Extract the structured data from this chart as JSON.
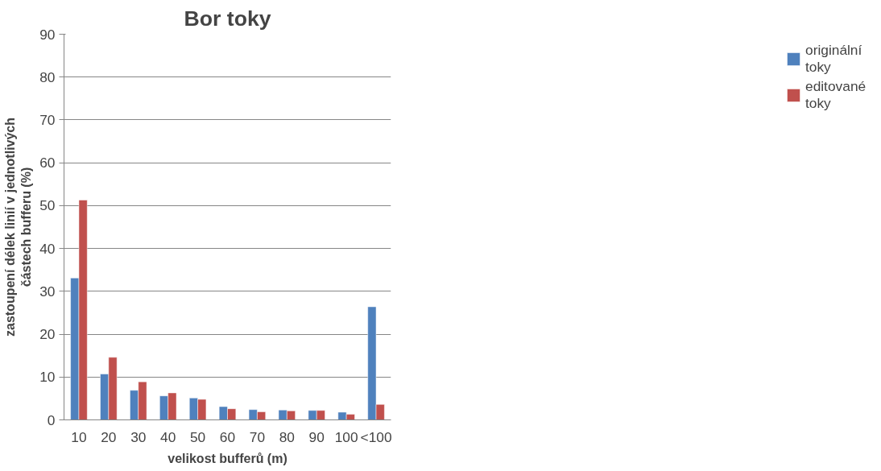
{
  "chart_data": {
    "type": "bar",
    "title": "Bor toky",
    "xlabel": "velikost bufferů (m)",
    "ylabel": "zastoupení délek linií v jednotlivých částech bufferu (%)",
    "categories": [
      "10",
      "20",
      "30",
      "40",
      "50",
      "60",
      "70",
      "80",
      "90",
      "100",
      "<100"
    ],
    "series": [
      {
        "name": "originální toky",
        "color": "#4f81bd",
        "values": [
          33.1,
          10.7,
          6.9,
          5.6,
          5.1,
          3.1,
          2.4,
          2.3,
          2.2,
          1.8,
          26.4
        ]
      },
      {
        "name": "editované toky",
        "color": "#c0504d",
        "values": [
          51.3,
          14.6,
          8.9,
          6.3,
          4.8,
          2.6,
          1.9,
          2.1,
          2.2,
          1.3,
          3.6
        ]
      }
    ],
    "ylim": [
      0,
      90
    ],
    "yticks": [
      0,
      10,
      20,
      30,
      40,
      50,
      60,
      70,
      80,
      90
    ],
    "grid": "y",
    "legend": "right"
  }
}
